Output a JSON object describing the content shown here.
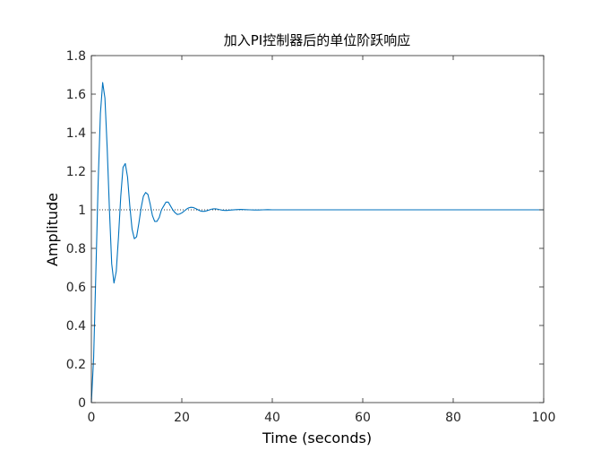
{
  "chart_data": {
    "type": "line",
    "title": "加入PI控制器后的单位阶跃响应",
    "xlabel": "Time (seconds)",
    "ylabel": "Amplitude",
    "xlim": [
      0,
      100
    ],
    "ylim": [
      0,
      1.8
    ],
    "x_ticks": [
      0,
      20,
      40,
      60,
      80,
      100
    ],
    "y_ticks": [
      0,
      0.2,
      0.4,
      0.6,
      0.8,
      1,
      1.2,
      1.4,
      1.6,
      1.8
    ],
    "x_tick_labels": [
      "0",
      "20",
      "40",
      "60",
      "80",
      "100"
    ],
    "y_tick_labels": [
      "0",
      "0.2",
      "0.4",
      "0.6",
      "0.8",
      "1",
      "1.2",
      "1.4",
      "1.6",
      "1.8"
    ],
    "grid": false,
    "reference_line": {
      "y": 1,
      "style": "dotted"
    },
    "series": [
      {
        "color": "#0072BD",
        "x": [
          0,
          0.5,
          1,
          1.5,
          2,
          2.5,
          3,
          3.5,
          4,
          4.5,
          5,
          5.5,
          6,
          6.5,
          7,
          7.5,
          8,
          8.5,
          9,
          9.5,
          10,
          10.5,
          11,
          11.5,
          12,
          12.5,
          13,
          13.5,
          14,
          14.5,
          15,
          15.5,
          16,
          16.5,
          17,
          17.5,
          18,
          18.5,
          19,
          19.5,
          20,
          20.5,
          21,
          21.5,
          22,
          22.5,
          23,
          23.5,
          24,
          24.5,
          25,
          25.5,
          26,
          26.5,
          27,
          27.5,
          28,
          28.5,
          29,
          29.5,
          30,
          31,
          32,
          33,
          34,
          35,
          36,
          37,
          38,
          39,
          40,
          42,
          44,
          46,
          48,
          50,
          55,
          60,
          65,
          70,
          75,
          80,
          85,
          90,
          95,
          100
        ],
        "y": [
          0,
          0.23,
          0.68,
          1.14,
          1.5,
          1.66,
          1.58,
          1.32,
          1.0,
          0.72,
          0.62,
          0.68,
          0.86,
          1.07,
          1.22,
          1.24,
          1.17,
          1.02,
          0.9,
          0.85,
          0.86,
          0.93,
          1.01,
          1.07,
          1.09,
          1.08,
          1.03,
          0.97,
          0.94,
          0.94,
          0.96,
          1.0,
          1.02,
          1.04,
          1.04,
          1.02,
          1.0,
          0.985,
          0.976,
          0.978,
          0.984,
          0.993,
          1.003,
          1.01,
          1.013,
          1.012,
          1.007,
          1.001,
          0.995,
          0.992,
          0.992,
          0.995,
          0.999,
          1.003,
          1.005,
          1.005,
          1.003,
          1.0,
          0.998,
          0.997,
          0.997,
          0.999,
          1.001,
          1.002,
          1.001,
          1.0,
          0.999,
          0.999,
          1.0,
          1.001,
          1.0,
          1.0,
          1.0,
          1.0,
          1.0,
          1.0,
          1.0,
          1.0,
          1.0,
          1.0,
          1.0,
          1.0,
          1.0,
          1.0,
          1.0,
          1.0
        ]
      }
    ]
  }
}
